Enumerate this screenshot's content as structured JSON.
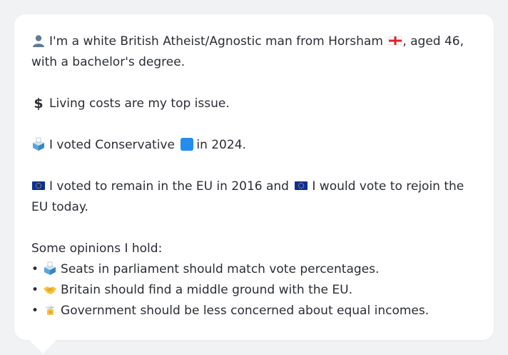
{
  "profile": {
    "identity": {
      "icon": "person-silhouette-icon",
      "text_before_flag": "I'm a white British Atheist/Agnostic man from Horsham",
      "flag_icon": "england-flag-icon",
      "text_after_flag": ", aged 46, with a bachelor's degree."
    },
    "top_issue": {
      "icon": "dollar-sign-icon",
      "text": "Living costs are my top issue."
    },
    "vote_2024": {
      "icon": "ballot-box-icon",
      "text_before": "I voted Conservative",
      "party_icon": "blue-square-icon",
      "text_after": "in 2024."
    },
    "eu": {
      "icon": "eu-flag-icon",
      "text_before": "I voted to remain in the EU in 2016 and",
      "icon2": "eu-flag-icon",
      "text_after": "I would vote to rejoin the EU today."
    },
    "opinions_heading": "Some opinions I hold:",
    "opinions": [
      {
        "bullet": "•",
        "icon": "ballot-box-icon",
        "text": "Seats in parliament should match vote percentages."
      },
      {
        "bullet": "•",
        "icon": "handshake-icon",
        "text": "Britain should find a middle ground with the EU."
      },
      {
        "bullet": "•",
        "icon": "money-with-wings-icon",
        "text": "Government should be less concerned about equal incomes."
      }
    ]
  },
  "colors": {
    "background": "#f1f2f4",
    "card": "#ffffff",
    "text": "#2b2d33",
    "conservative_blue": "#1f8ef1",
    "eu_blue": "#0d2f8f",
    "eu_star": "#ffcc00"
  }
}
